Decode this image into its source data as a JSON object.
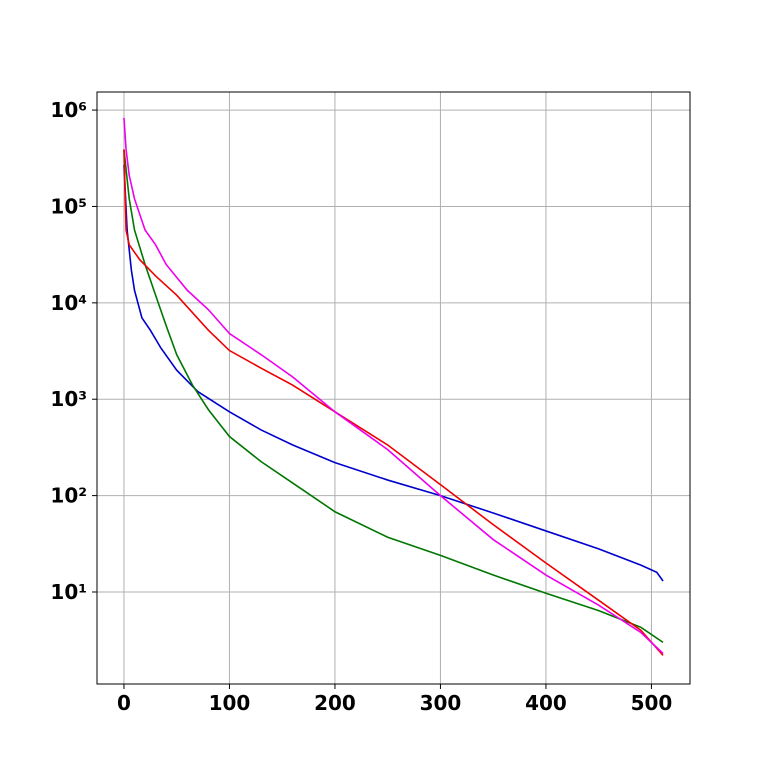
{
  "chart_data": {
    "type": "line",
    "log_y": true,
    "grid": true,
    "xlim": [
      -25.55,
      536.55
    ],
    "ylim": [
      1.11,
      1540000
    ],
    "xticks": [
      0,
      100,
      200,
      300,
      400,
      500
    ],
    "yticks": [
      {
        "value": 10,
        "label": "10¹"
      },
      {
        "value": 100,
        "label": "10²"
      },
      {
        "value": 1000,
        "label": "10³"
      },
      {
        "value": 10000,
        "label": "10⁴"
      },
      {
        "value": 100000,
        "label": "10⁵"
      },
      {
        "value": 1000000,
        "label": "10⁶"
      }
    ],
    "series": [
      {
        "color": "#0000cc",
        "x": [
          0,
          3,
          7,
          10,
          17,
          25,
          35,
          50,
          70,
          100,
          130,
          160,
          200,
          250,
          300,
          350,
          400,
          450,
          490,
          505,
          511
        ],
        "values": [
          270000,
          57000,
          22000,
          13500,
          7000,
          5200,
          3400,
          2000,
          1200,
          740,
          480,
          335,
          220,
          145,
          100,
          66,
          43,
          28,
          19,
          16,
          13
        ]
      },
      {
        "color": "#007700",
        "x": [
          0,
          5,
          10,
          20,
          30,
          40,
          50,
          65,
          80,
          100,
          130,
          160,
          200,
          250,
          300,
          350,
          400,
          450,
          490,
          511
        ],
        "values": [
          390000,
          120000,
          57000,
          25000,
          12000,
          5800,
          2900,
          1400,
          780,
          410,
          225,
          135,
          68,
          37,
          24,
          15,
          9.7,
          6.4,
          4.3,
          3
        ]
      },
      {
        "color": "#ee0000",
        "x": [
          0,
          2,
          5,
          15,
          30,
          50,
          80,
          100,
          130,
          160,
          200,
          250,
          300,
          350,
          400,
          450,
          490,
          511
        ],
        "values": [
          390000,
          57000,
          40000,
          28000,
          19000,
          12000,
          5200,
          3200,
          2100,
          1400,
          740,
          335,
          130,
          50,
          20,
          8.2,
          4.0,
          2.2
        ]
      },
      {
        "color": "#ee00ee",
        "x": [
          0,
          2,
          5,
          10,
          20,
          30,
          40,
          60,
          80,
          100,
          130,
          160,
          200,
          250,
          300,
          350,
          400,
          450,
          490,
          511
        ],
        "values": [
          830000,
          390000,
          210000,
          120000,
          57000,
          40000,
          25000,
          13500,
          8500,
          4800,
          2900,
          1700,
          740,
          300,
          100,
          35,
          15,
          7.3,
          3.8,
          2.3
        ]
      }
    ]
  }
}
